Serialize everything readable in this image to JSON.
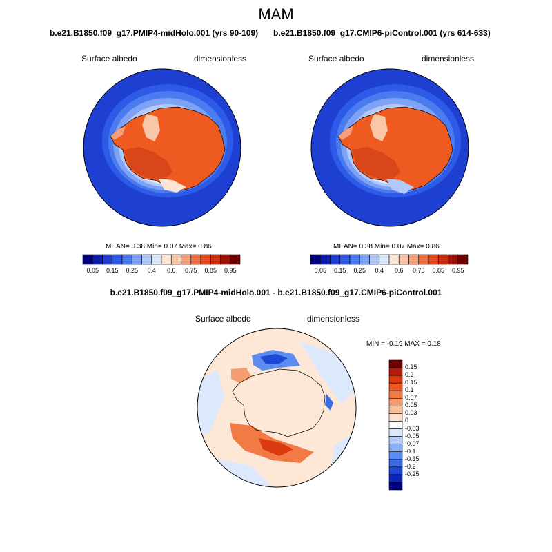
{
  "figure": {
    "season": "MAM",
    "left_panel_title": "b.e21.B1850.f09_g17.PMIP4-midHolo.001 (yrs 90-109)",
    "right_panel_title": "b.e21.B1850.f09_g17.CMIP6-piControl.001 (yrs 614-633)",
    "diff_title": "b.e21.B1850.f09_g17.PMIP4-midHolo.001 - b.e21.B1850.f09_g17.CMIP6-piControl.001"
  },
  "panels": [
    {
      "variable": "Surface albedo",
      "units": "dimensionless",
      "stats": "MEAN=   0.38  Min=   0.07  Max=   0.86"
    },
    {
      "variable": "Surface albedo",
      "units": "dimensionless",
      "stats": "MEAN=   0.38  Min=   0.07  Max=   0.86"
    }
  ],
  "diff_panel": {
    "variable": "Surface albedo",
    "units": "dimensionless",
    "stats": "MIN =  -0.19 MAX =   0.18"
  },
  "colorbar_abs": {
    "colors": [
      "#00007f",
      "#0a1db0",
      "#1e3fd1",
      "#2d5ae6",
      "#4a7cf0",
      "#7ea2f5",
      "#b3c9f8",
      "#dde7fc",
      "#fbe6d6",
      "#f9c6a8",
      "#f5a07a",
      "#ef7040",
      "#e64a1f",
      "#c9300e",
      "#9c1508",
      "#6e0000"
    ],
    "labels": [
      "0.05",
      "0.15",
      "0.25",
      "0.4",
      "0.6",
      "0.75",
      "0.85",
      "0.95"
    ]
  },
  "colorbar_diff": {
    "colors": [
      "#6e0000",
      "#b01a08",
      "#d93a10",
      "#ec5a22",
      "#f27a45",
      "#f69d70",
      "#f9c09d",
      "#fde2cf",
      "#ffffff",
      "#dce8fb",
      "#b5cdf7",
      "#8cb0f3",
      "#5c8cef",
      "#3a6ce6",
      "#1f48d4",
      "#0a25b8",
      "#000080"
    ],
    "labels": [
      "0.25",
      "0.2",
      "0.15",
      "0.1",
      "0.07",
      "0.05",
      "0.03",
      "0",
      "-0.03",
      "-0.05",
      "-0.07",
      "-0.1",
      "-0.15",
      "-0.2",
      "-0.25"
    ]
  },
  "colors": {
    "ocean_low": "#1e40d2",
    "ocean_ring": "#2f5fe6",
    "sea_ice_mid": "#7ea2f5",
    "sea_ice_light": "#dde7fc",
    "ice_sheet": "#ef5a20",
    "ice_sheet_dark": "#d9461a",
    "diff_bg": "#fde7d6",
    "diff_neg": "#1f48d4",
    "diff_pos": "#e64a1f"
  }
}
